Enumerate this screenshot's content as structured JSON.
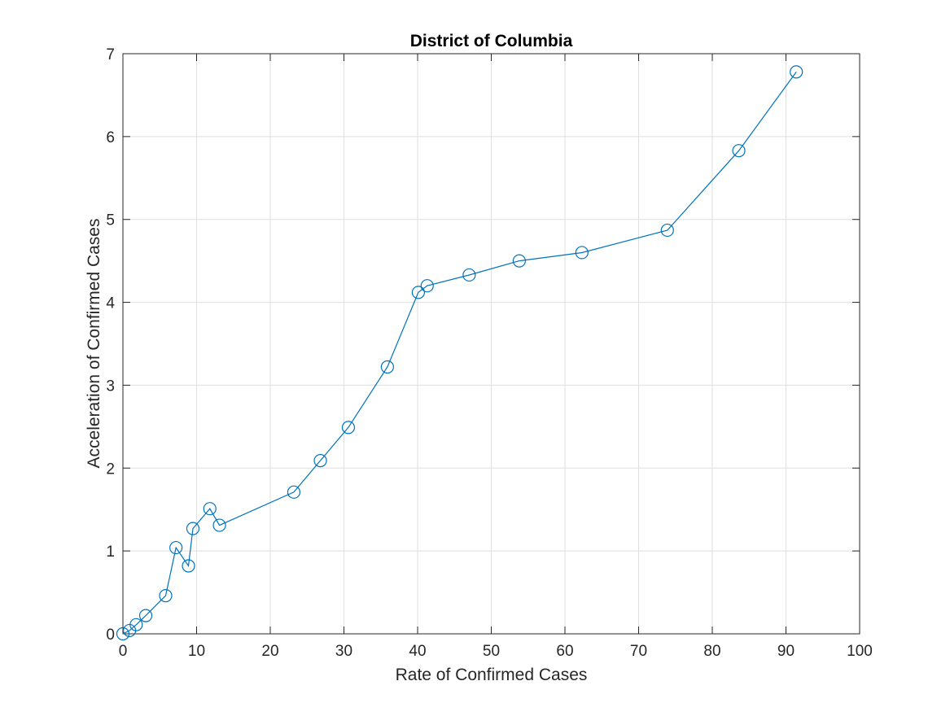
{
  "chart_data": {
    "type": "line",
    "title": "District of Columbia",
    "xlabel": "Rate of Confirmed Cases",
    "ylabel": "Acceleration of Confirmed Cases",
    "xlim": [
      0,
      100
    ],
    "ylim": [
      0,
      7
    ],
    "xticks": [
      0,
      10,
      20,
      30,
      40,
      50,
      60,
      70,
      80,
      90,
      100
    ],
    "yticks": [
      0,
      1,
      2,
      3,
      4,
      5,
      6,
      7
    ],
    "grid": true,
    "marker": "circle",
    "series": [
      {
        "color": "#0072BD",
        "x": [
          0,
          0.9,
          1.8,
          3.1,
          5.8,
          7.2,
          8.9,
          9.5,
          11.8,
          13.1,
          23.2,
          26.8,
          30.6,
          35.9,
          40.1,
          41.3,
          47.0,
          53.8,
          62.3,
          73.9,
          83.6,
          91.4
        ],
        "y": [
          0,
          0.04,
          0.11,
          0.22,
          0.46,
          1.04,
          0.82,
          1.27,
          1.51,
          1.31,
          1.71,
          2.09,
          2.49,
          3.22,
          4.12,
          4.2,
          4.33,
          4.5,
          4.6,
          4.87,
          5.83,
          6.78
        ]
      }
    ]
  }
}
